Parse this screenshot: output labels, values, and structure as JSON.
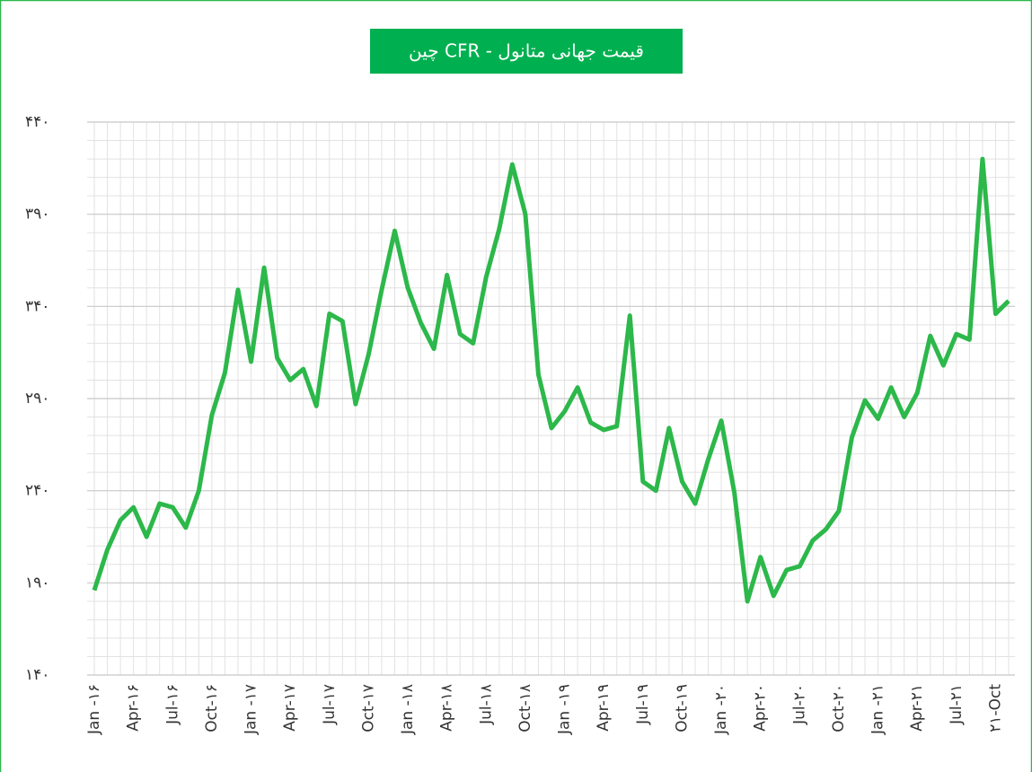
{
  "chart_data": {
    "type": "line",
    "title": "قیمت جهانی متانول - CFR چین",
    "categories": [
      "Jan -۱۶",
      null,
      null,
      "Apr-۱۶",
      null,
      null,
      "Jul-۱۶",
      null,
      null,
      "Oct-۱۶",
      null,
      null,
      "Jan -۱۷",
      null,
      null,
      "Apr-۱۷",
      null,
      null,
      "Jul-۱۷",
      null,
      null,
      "Oct-۱۷",
      null,
      null,
      "Jan -۱۸",
      null,
      null,
      "Apr-۱۸",
      null,
      null,
      "Jul-۱۸",
      null,
      null,
      "Oct-۱۸",
      null,
      null,
      "Jan -۱۹",
      null,
      null,
      "Apr-۱۹",
      null,
      null,
      "Jul-۱۹",
      null,
      null,
      "Oct-۱۹",
      null,
      null,
      "Jan -۲۰",
      null,
      null,
      "Apr-۲۰",
      null,
      null,
      "Jul-۲۰",
      null,
      null,
      "Oct-۲۰",
      null,
      null,
      "Jan -۲۱",
      null,
      null,
      "Apr-۲۱",
      null,
      null,
      "Jul-۲۱",
      null,
      null,
      "۲۱-Oct",
      null
    ],
    "values": [
      186,
      208,
      224,
      231,
      215,
      233,
      231,
      220,
      240,
      281,
      304,
      349,
      310,
      361,
      312,
      300,
      306,
      286,
      336,
      332,
      287,
      314,
      349,
      381,
      350,
      331,
      317,
      357,
      325,
      320,
      356,
      382,
      417,
      390,
      303,
      274,
      283,
      296,
      277,
      273,
      275,
      335,
      245,
      240,
      274,
      245,
      233,
      257,
      278,
      239,
      180,
      204,
      183,
      197,
      199,
      213,
      219,
      229,
      269,
      289,
      279,
      296,
      280,
      293,
      324,
      308,
      325,
      322,
      420,
      336,
      343
    ],
    "color": "#2cb84a",
    "ylim": [
      140,
      440
    ],
    "yticks": [
      {
        "value": 140,
        "label": "۱۴۰"
      },
      {
        "value": 190,
        "label": "۱۹۰"
      },
      {
        "value": 240,
        "label": "۲۴۰"
      },
      {
        "value": 290,
        "label": "۲۹۰"
      },
      {
        "value": 340,
        "label": "۳۴۰"
      },
      {
        "value": 390,
        "label": "۳۹۰"
      },
      {
        "value": 440,
        "label": "۴۴۰"
      }
    ],
    "grid": true
  }
}
